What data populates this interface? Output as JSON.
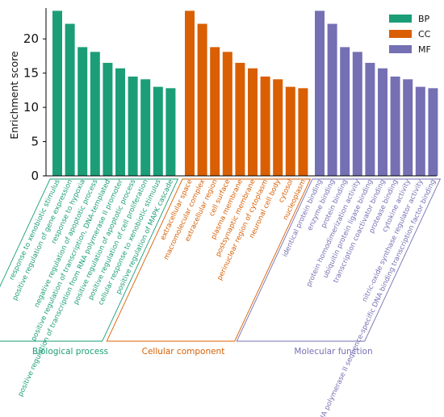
{
  "chart_data": {
    "type": "bar",
    "ylabel": "Enrichment score",
    "ylim": [
      0,
      24.5
    ],
    "yticks": [
      0,
      5,
      10,
      15,
      20
    ],
    "grid": false,
    "legend_position": "top-right",
    "series": [
      {
        "name": "BP",
        "group_label": "Biological process",
        "color": "#1b9e77",
        "categories": [
          "response to xenobiotic stimulus",
          "positive regulation of gene expression",
          "response to hypoxia",
          "negative regulation of apoptotic process",
          "positive regulation of transcription, DNA-templated",
          "positive regulation of transcription from RNA polymerase II promoter",
          "positive regulation of apoptotic process",
          "positive regulation of cell proliferation",
          "cellular response to xenobiotic stimulus",
          "positive regulation of MAPK cascade"
        ],
        "values": [
          24.1,
          22.2,
          18.8,
          18.1,
          16.5,
          15.7,
          14.5,
          14.1,
          13.0,
          12.8
        ]
      },
      {
        "name": "CC",
        "group_label": "Cellular component",
        "color": "#d95f02",
        "categories": [
          "extracellular space",
          "macromolecular complex",
          "extracellular region",
          "cell surface",
          "plasma membrane",
          "postsynaptic membrane",
          "perinuclear region of cytoplasm",
          "neuronal cell body",
          "cytosol",
          "nucleoplasm"
        ],
        "values": [
          24.1,
          22.2,
          18.8,
          18.1,
          16.5,
          15.7,
          14.5,
          14.1,
          13.0,
          12.8
        ]
      },
      {
        "name": "MF",
        "group_label": "Molecular function",
        "color": "#7570b3",
        "categories": [
          "identical protein binding",
          "enzyme binding",
          "protein binding",
          "protein homodimerization activity",
          "ubiquitin protein ligase binding",
          "transcription coactivator binding",
          "protease binding",
          "cytokine activity",
          "nitric-oxide synthase regulator activity",
          "RNA polymerase II sequence-specific DNA binding transcription factor binding"
        ],
        "values": [
          24.1,
          22.2,
          18.8,
          18.1,
          16.5,
          15.7,
          14.5,
          14.1,
          13.0,
          12.8
        ]
      }
    ]
  }
}
